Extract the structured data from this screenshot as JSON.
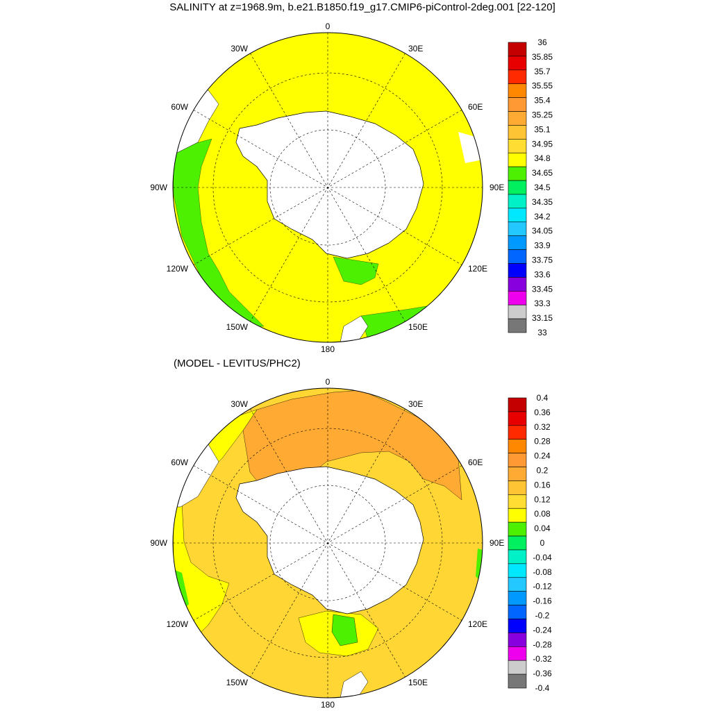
{
  "title": "SALINITY at z=1968.9m, b.e21.B1850.f19_g17.CMIP6-piControl-2deg.001 [22-120]",
  "subtitle": "(MODEL - LEVITUS/PHC2)",
  "longitude_labels": {
    "top": "0",
    "bottom": "180",
    "left": "90W",
    "right": "90E",
    "upper_left_1": "30W",
    "upper_right_1": "30E",
    "upper_left_2": "60W",
    "upper_right_2": "60E",
    "lower_left_1": "120W",
    "lower_right_1": "120E",
    "lower_left_2": "150W",
    "lower_right_2": "150E"
  },
  "colors": {
    "yellow": "#ffff00",
    "light_orange": "#ffd633",
    "orange": "#ffaa33",
    "green": "#4cf000",
    "land": "#ffffff"
  },
  "colorbar_top": {
    "labels": [
      "36",
      "35.85",
      "35.7",
      "35.55",
      "35.4",
      "35.25",
      "35.1",
      "34.95",
      "34.8",
      "34.65",
      "34.5",
      "34.35",
      "34.2",
      "34.05",
      "33.9",
      "33.75",
      "33.6",
      "33.45",
      "33.3",
      "33.15",
      "33"
    ],
    "colors": [
      "#c40000",
      "#e80000",
      "#ff2a00",
      "#ff8800",
      "#ff9933",
      "#ffaa33",
      "#ffc433",
      "#ffdd33",
      "#ffff00",
      "#4cf000",
      "#00f060",
      "#00f0c8",
      "#00e8ff",
      "#22c8ff",
      "#0099ff",
      "#0066ff",
      "#0000ff",
      "#8800dd",
      "#ee00ee",
      "#cccccc",
      "#777777"
    ]
  },
  "colorbar_bottom": {
    "labels": [
      "0.4",
      "0.36",
      "0.32",
      "0.28",
      "0.24",
      "0.2",
      "0.16",
      "0.12",
      "0.08",
      "0.04",
      "0",
      "-0.04",
      "-0.08",
      "-0.12",
      "-0.16",
      "-0.2",
      "-0.24",
      "-0.28",
      "-0.32",
      "-0.36",
      "-0.4"
    ],
    "colors": [
      "#c40000",
      "#e80000",
      "#ff2a00",
      "#ff8800",
      "#ff9933",
      "#ffaa33",
      "#ffc433",
      "#ffdd33",
      "#ffff00",
      "#4cf000",
      "#00f060",
      "#00f0c8",
      "#00e8ff",
      "#22c8ff",
      "#0099ff",
      "#0066ff",
      "#0000ff",
      "#8800dd",
      "#ee00ee",
      "#cccccc",
      "#777777"
    ]
  }
}
